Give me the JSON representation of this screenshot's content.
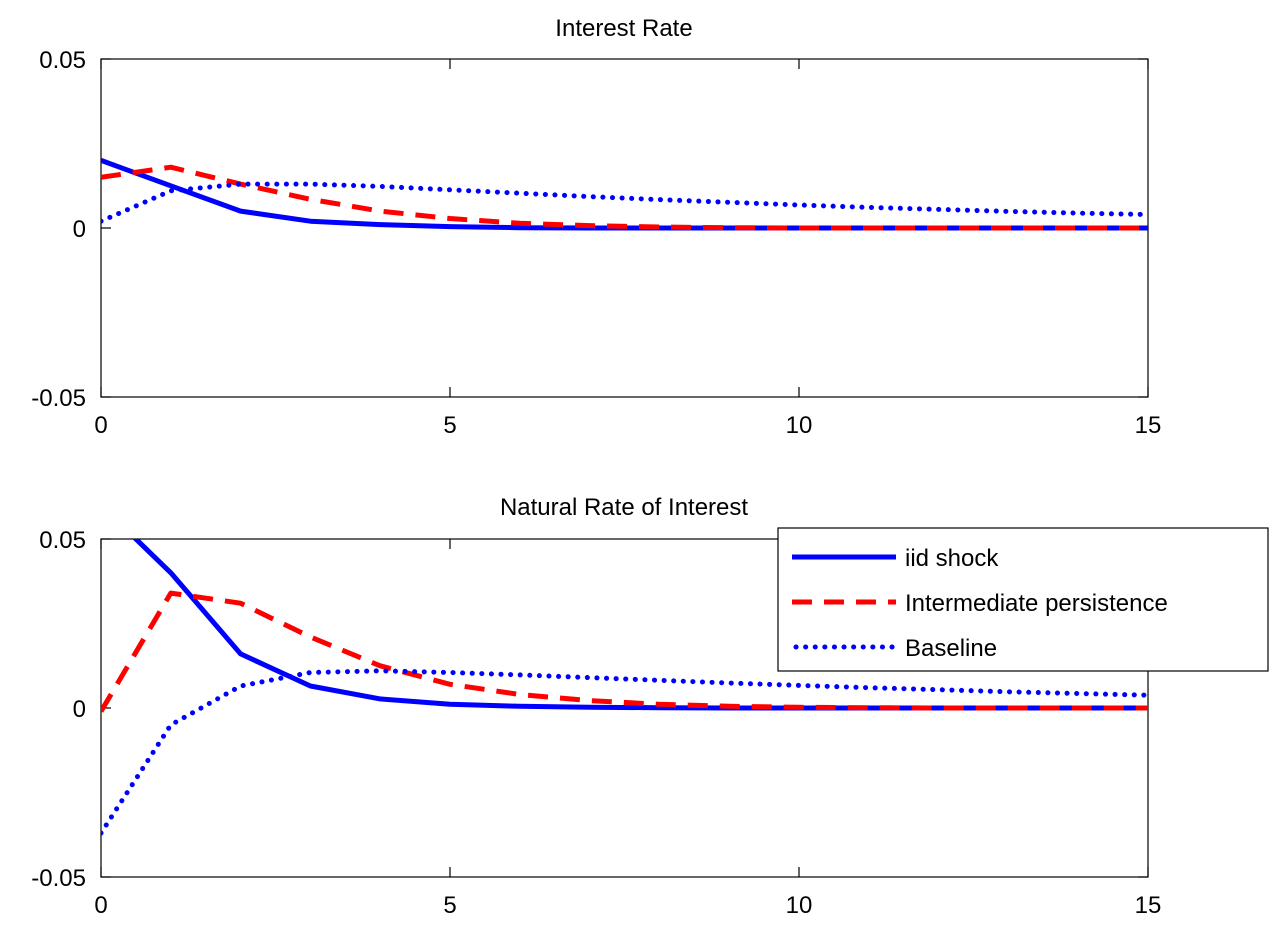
{
  "colors": {
    "iid": "#0000ff",
    "intermediate": "#ff0000",
    "baseline": "#0000ff",
    "axes": "#000000",
    "background": "#ffffff"
  },
  "chart_data": [
    {
      "type": "line",
      "title": "Interest Rate",
      "xlim": [
        0,
        15
      ],
      "ylim": [
        -0.05,
        0.05
      ],
      "xticks": [
        "0",
        "5",
        "10",
        "15"
      ],
      "yticks": [
        "-0.05",
        "0",
        "0.05"
      ],
      "grid": false,
      "series": [
        {
          "name": "iid shock",
          "style": "solid",
          "x": [
            0,
            1,
            2,
            3,
            4,
            5,
            6,
            7,
            8,
            9,
            10,
            11,
            12,
            13,
            14,
            15
          ],
          "y": [
            0.02,
            0.0125,
            0.005,
            0.002,
            0.001,
            0.0004,
            0.0001,
            0,
            0,
            0,
            0,
            0,
            0,
            0,
            0,
            0
          ]
        },
        {
          "name": "Intermediate persistence",
          "style": "dashed",
          "x": [
            0,
            1,
            2,
            3,
            4,
            5,
            6,
            7,
            8,
            9,
            10,
            11,
            12,
            13,
            14,
            15
          ],
          "y": [
            0.015,
            0.018,
            0.013,
            0.0085,
            0.005,
            0.0028,
            0.0014,
            0.0007,
            0.0003,
            0.0001,
            0,
            0,
            0,
            0,
            0,
            0
          ]
        },
        {
          "name": "Baseline",
          "style": "dotted",
          "x": [
            0,
            1,
            2,
            3,
            4,
            5,
            6,
            7,
            8,
            9,
            10,
            11,
            12,
            13,
            14,
            15
          ],
          "y": [
            0.002,
            0.011,
            0.013,
            0.013,
            0.0123,
            0.0113,
            0.0103,
            0.0093,
            0.0084,
            0.0076,
            0.0068,
            0.0061,
            0.0055,
            0.0049,
            0.0044,
            0.004
          ]
        }
      ]
    },
    {
      "type": "line",
      "title": "Natural Rate of Interest",
      "xlim": [
        0,
        15
      ],
      "ylim": [
        -0.05,
        0.05
      ],
      "xticks": [
        "0",
        "5",
        "10",
        "15"
      ],
      "yticks": [
        "-0.05",
        "0",
        "0.05"
      ],
      "grid": false,
      "legend": {
        "position": "top-right",
        "entries": [
          "iid shock",
          "Intermediate persistence",
          "Baseline"
        ]
      },
      "series": [
        {
          "name": "iid shock",
          "style": "solid",
          "x": [
            0,
            1,
            2,
            3,
            4,
            5,
            6,
            7,
            8,
            9,
            10,
            11,
            12,
            13,
            14,
            15
          ],
          "y": [
            0.06,
            0.04,
            0.016,
            0.0065,
            0.0027,
            0.0011,
            0.0005,
            0.0002,
            0.0001,
            0,
            0,
            0,
            0,
            0,
            0,
            0
          ]
        },
        {
          "name": "Intermediate persistence",
          "style": "dashed",
          "x": [
            0,
            1,
            2,
            3,
            4,
            5,
            6,
            7,
            8,
            9,
            10,
            11,
            12,
            13,
            14,
            15
          ],
          "y": [
            -0.001,
            0.034,
            0.031,
            0.021,
            0.0125,
            0.007,
            0.004,
            0.0022,
            0.0011,
            0.0005,
            0.0002,
            0.0001,
            0,
            0,
            0,
            0
          ]
        },
        {
          "name": "Baseline",
          "style": "dotted",
          "x": [
            0,
            1,
            2,
            3,
            4,
            5,
            6,
            7,
            8,
            9,
            10,
            11,
            12,
            13,
            14,
            15
          ],
          "y": [
            -0.037,
            -0.005,
            0.0065,
            0.0105,
            0.011,
            0.0105,
            0.0098,
            0.009,
            0.0082,
            0.0074,
            0.0067,
            0.006,
            0.0054,
            0.0048,
            0.0043,
            0.0038
          ]
        }
      ]
    }
  ]
}
